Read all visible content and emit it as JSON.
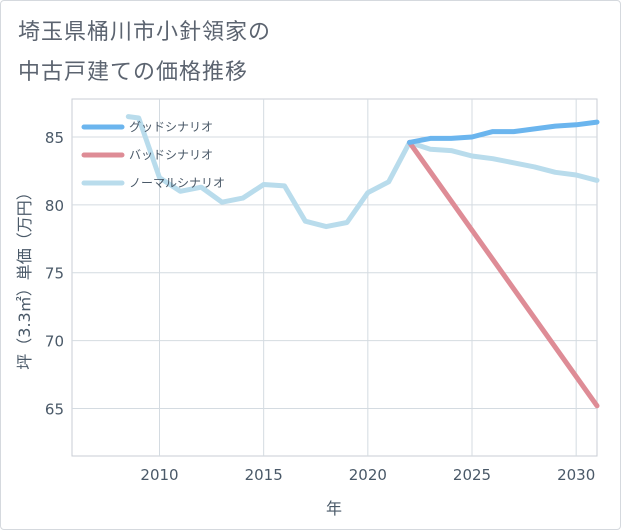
{
  "title_line1": "埼玉県桶川市小針領家の",
  "title_line2": "中古戸建ての価格推移",
  "chart_data": {
    "type": "line",
    "xlabel": "年",
    "ylabel": "坪（3.3㎡）単価（万円）",
    "xlim": [
      2005.8,
      2031
    ],
    "ylim": [
      61.5,
      87.8
    ],
    "xticks": [
      2010,
      2015,
      2020,
      2025,
      2030
    ],
    "yticks": [
      65,
      70,
      75,
      80,
      85
    ],
    "grid": true,
    "legend_position": "top-left",
    "colors": {
      "good": "#6bb5ee",
      "bad": "#de8c96",
      "normal": "#b9dcec"
    },
    "series": [
      {
        "name": "グッドシナリオ",
        "key": "good",
        "x": [
          2022,
          2023,
          2024,
          2025,
          2026,
          2027,
          2028,
          2029,
          2030,
          2031
        ],
        "y": [
          84.6,
          84.9,
          84.9,
          85.0,
          85.4,
          85.4,
          85.6,
          85.8,
          85.9,
          86.1
        ]
      },
      {
        "name": "バッドシナリオ",
        "key": "bad",
        "x": [
          2022,
          2031
        ],
        "y": [
          84.6,
          65.2
        ]
      },
      {
        "name": "ノーマルシナリオ",
        "key": "normal",
        "x": [
          2008.5,
          2009,
          2010,
          2011,
          2012,
          2013,
          2014,
          2015,
          2016,
          2017,
          2018,
          2019,
          2020,
          2021,
          2022,
          2023,
          2024,
          2025,
          2026,
          2027,
          2028,
          2029,
          2030,
          2031
        ],
        "y": [
          86.5,
          86.4,
          82.0,
          81.0,
          81.3,
          80.2,
          80.5,
          81.5,
          81.4,
          78.8,
          78.4,
          78.7,
          80.9,
          81.7,
          84.6,
          84.1,
          84.0,
          83.6,
          83.4,
          83.1,
          82.8,
          82.4,
          82.2,
          81.8
        ]
      }
    ]
  }
}
